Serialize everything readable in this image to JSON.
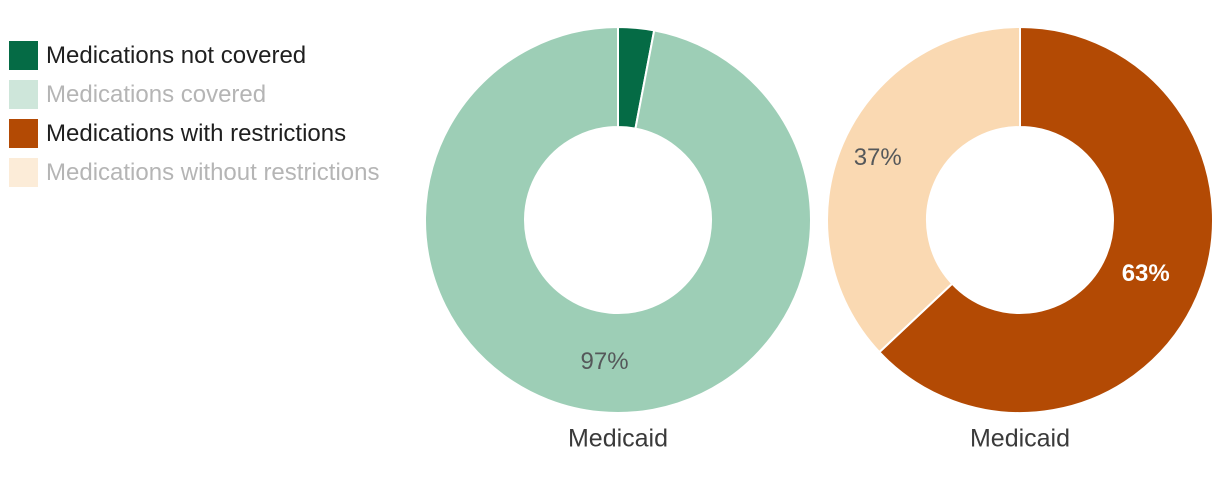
{
  "legend": {
    "active_text_color": "#1f1f1f",
    "dimmed_text_color": "#b5b5b5",
    "items": [
      {
        "label": "Medications not covered",
        "color": "#056B45",
        "dimmed": false
      },
      {
        "label": "Medications covered",
        "color": "#9DCEB6",
        "dimmed": true
      },
      {
        "label": "Medications with restrictions",
        "color": "#B34A04",
        "dimmed": false
      },
      {
        "label": "Medications without restrictions",
        "color": "#FAD9B2",
        "dimmed": true
      }
    ]
  },
  "chart_data": [
    {
      "type": "pie",
      "subtype": "donut",
      "title": "Medicaid",
      "units": "%",
      "start_angle_deg": 0,
      "direction": "clockwise",
      "inner_radius_pct": 48,
      "slices": [
        {
          "name": "Medications not covered",
          "value": 3,
          "color": "#056B45",
          "data_label": ""
        },
        {
          "name": "Medications covered",
          "value": 97,
          "color": "#9DCEB6",
          "data_label": "97%",
          "data_label_color": "#55585A",
          "data_label_bold": false
        }
      ]
    },
    {
      "type": "pie",
      "subtype": "donut",
      "title": "Medicaid",
      "units": "%",
      "start_angle_deg": 0,
      "direction": "clockwise",
      "inner_radius_pct": 48,
      "slices": [
        {
          "name": "Medications with restrictions",
          "value": 63,
          "color": "#B34A04",
          "data_label": "63%",
          "data_label_color": "#FFFFFF",
          "data_label_bold": true
        },
        {
          "name": "Medications without restrictions",
          "value": 37,
          "color": "#FAD9B2",
          "data_label": "37%",
          "data_label_color": "#55585A",
          "data_label_bold": false
        }
      ]
    }
  ]
}
